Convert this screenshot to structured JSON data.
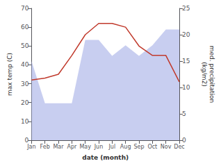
{
  "chart_data": {
    "type": "line",
    "categories": [
      "Jan",
      "Feb",
      "Mar",
      "Apr",
      "May",
      "Jun",
      "Jul",
      "Aug",
      "Sep",
      "Oct",
      "Nov",
      "Dec"
    ],
    "xlabel": "date (month)",
    "ylabel": "max temp (C)",
    "y2label": "med. precipitation\n(kg/m2)",
    "ylim": [
      0,
      70
    ],
    "yticks": [
      0,
      10,
      20,
      30,
      40,
      50,
      60,
      70
    ],
    "y2lim": [
      0,
      25
    ],
    "y2ticks": [
      0,
      5,
      10,
      15,
      20,
      25
    ],
    "grid": false,
    "series": [
      {
        "type": "area",
        "axis": "y2",
        "color": "#aab4e8",
        "values": [
          15,
          7,
          7,
          7,
          19,
          19,
          16,
          18,
          16,
          18,
          21,
          21
        ]
      },
      {
        "type": "line",
        "color": "#c0392b",
        "values": [
          32,
          33,
          35,
          45,
          56,
          62,
          62,
          60,
          50,
          45,
          45,
          31
        ]
      }
    ]
  }
}
